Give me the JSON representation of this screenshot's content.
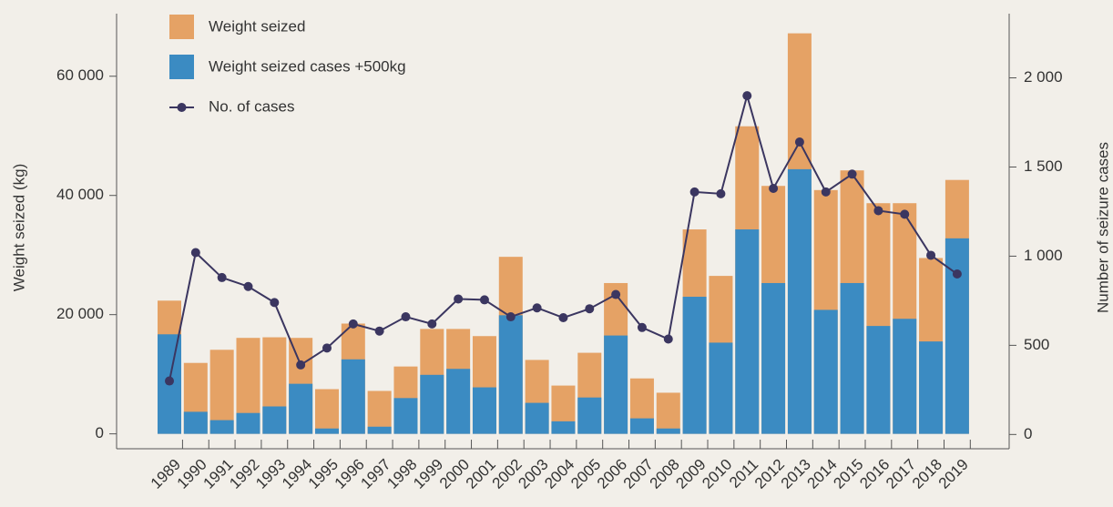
{
  "chart_data": {
    "type": "bar-line",
    "categories": [
      "1989",
      "1990",
      "1991",
      "1992",
      "1993",
      "1994",
      "1995",
      "1996",
      "1997",
      "1998",
      "1999",
      "2000",
      "2001",
      "2002",
      "2003",
      "2004",
      "2005",
      "2006",
      "2007",
      "2008",
      "2009",
      "2010",
      "2011",
      "2012",
      "2013",
      "2014",
      "2015",
      "2016",
      "2017",
      "2018",
      "2019"
    ],
    "series": [
      {
        "name": "Weight seized",
        "color": "#e5a265",
        "type": "bar",
        "values": [
          22350,
          11900,
          14100,
          16100,
          16200,
          16100,
          7500,
          18500,
          7200,
          11300,
          17600,
          17600,
          16400,
          29700,
          12400,
          8100,
          13600,
          25300,
          9300,
          6900,
          34300,
          26500,
          51600,
          41600,
          67200,
          40900,
          44200,
          38700,
          38700,
          29500,
          42600
        ]
      },
      {
        "name": "Weight seized cases +500kg",
        "color": "#3b8bc2",
        "type": "bar",
        "values": [
          16700,
          3700,
          2300,
          3500,
          4600,
          8400,
          900,
          12500,
          1200,
          6000,
          9900,
          10900,
          7800,
          19900,
          5200,
          2100,
          6100,
          16500,
          2600,
          900,
          23000,
          15300,
          34300,
          25300,
          44400,
          20800,
          25300,
          18100,
          19300,
          15500,
          32800
        ]
      },
      {
        "name": "No. of cases",
        "color": "#3b3660",
        "type": "line",
        "axis": "y2",
        "values": [
          300,
          1020,
          880,
          830,
          740,
          390,
          485,
          620,
          580,
          660,
          620,
          760,
          755,
          660,
          710,
          655,
          705,
          785,
          600,
          535,
          1360,
          1350,
          1900,
          1380,
          1640,
          1360,
          1460,
          1255,
          1235,
          1005,
          900
        ]
      }
    ],
    "ylabel": "Weight seized (kg)",
    "y2label": "Number of seizure cases",
    "ylim": [
      -2500,
      70500
    ],
    "yticks": [
      0,
      {
        "value": 20000,
        "label": "20 000"
      },
      {
        "value": 40000,
        "label": "40 000"
      },
      {
        "value": 60000,
        "label": "60 000"
      }
    ],
    "y2lim": [
      -80,
      2360
    ],
    "y2ticks": [
      0,
      500,
      {
        "value": 1000,
        "label": "1 000"
      },
      {
        "value": 1500,
        "label": "1 500"
      },
      {
        "value": 2000,
        "label": "2 000"
      }
    ],
    "legend": "top-left"
  }
}
